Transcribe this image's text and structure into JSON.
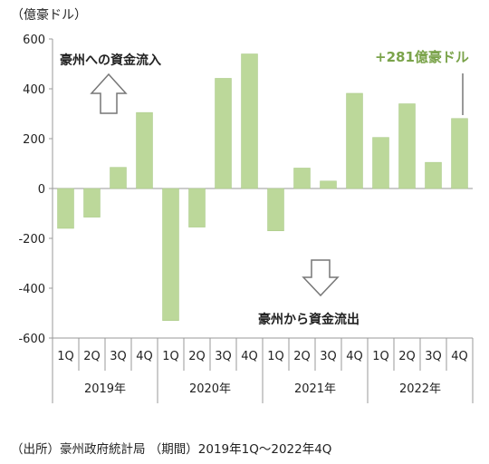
{
  "unit_label": "（億豪ドル）",
  "annotations": {
    "inflow": "豪州への資金流入",
    "outflow": "豪州から資金流出",
    "latest_value": "+281億豪ドル"
  },
  "source": "（出所）豪州政府統計局 （期間）2019年1Q～2022年4Q",
  "colors": {
    "bar": "#bcd89a",
    "bar_stroke": "#a8c985",
    "accent_text": "#7aa34a"
  },
  "chart_data": {
    "type": "bar",
    "title": "",
    "xlabel": "",
    "ylabel": "（億豪ドル）",
    "ylim": [
      -600,
      600
    ],
    "yticks": [
      600,
      400,
      200,
      0,
      -200,
      -400,
      -600
    ],
    "ytick_labels": [
      "600",
      "400",
      "200",
      "0",
      "-200",
      "-400",
      "-600"
    ],
    "categories": [
      "1Q",
      "2Q",
      "3Q",
      "4Q",
      "1Q",
      "2Q",
      "3Q",
      "4Q",
      "1Q",
      "2Q",
      "3Q",
      "4Q",
      "1Q",
      "2Q",
      "3Q",
      "4Q"
    ],
    "year_groups": [
      "2019年",
      "2020年",
      "2021年",
      "2022年"
    ],
    "values": [
      -160,
      -115,
      85,
      305,
      -530,
      -155,
      442,
      540,
      -170,
      82,
      30,
      382,
      205,
      340,
      105,
      281
    ],
    "grid": false,
    "legend": "none"
  }
}
